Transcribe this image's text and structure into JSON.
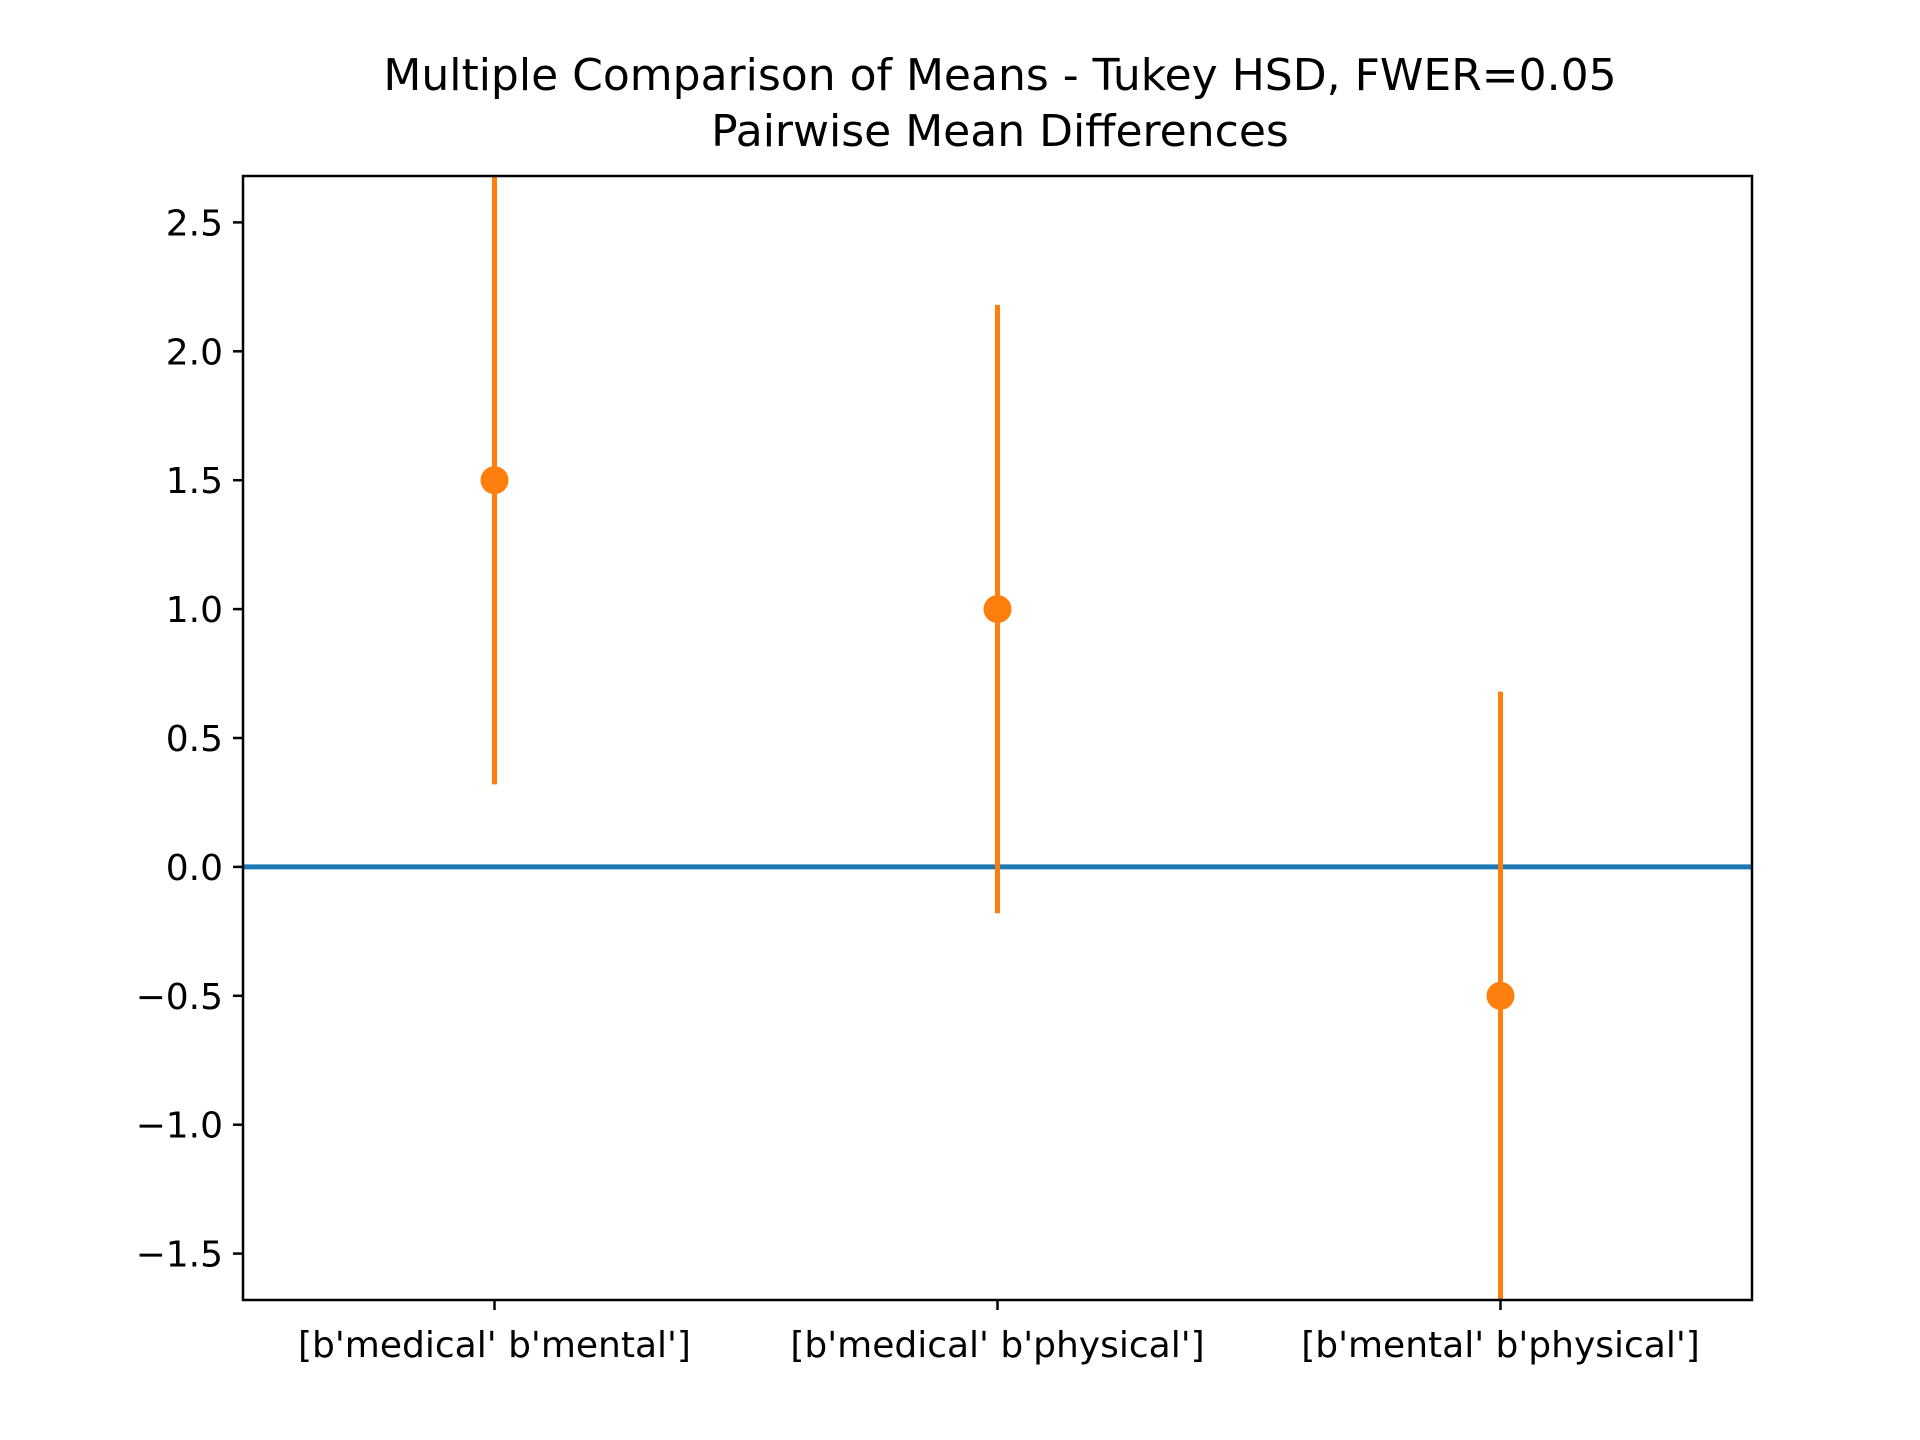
{
  "chart_data": {
    "type": "errorbar",
    "title": "Multiple Comparison of Means - Tukey HSD, FWER=0.05",
    "subtitle": "Pairwise Mean Differences",
    "xlabel": "",
    "ylabel": "",
    "categories": [
      "[b'medical' b'mental']",
      "[b'medical' b'physical']",
      "[b'mental' b'physical']"
    ],
    "series": [
      {
        "values": [
          1.5,
          1.0,
          -0.5
        ],
        "lower": [
          0.32,
          -0.18,
          -1.68
        ],
        "upper": [
          2.68,
          2.18,
          0.68
        ],
        "color": "#ff7f0e"
      }
    ],
    "reference_line": {
      "y": 0,
      "color": "#1f77b4"
    },
    "xlim": [
      -0.5,
      2.5
    ],
    "ylim": [
      -1.68,
      2.68
    ],
    "yticks": [
      2.5,
      2.0,
      1.5,
      1.0,
      0.5,
      0.0,
      -0.5,
      -1.0,
      -1.5
    ],
    "ytick_labels": [
      "2.5",
      "2.0",
      "1.5",
      "1.0",
      "0.5",
      "0.0",
      "−0.5",
      "−1.0",
      "−1.5"
    ],
    "grid": false,
    "legend": "none"
  }
}
